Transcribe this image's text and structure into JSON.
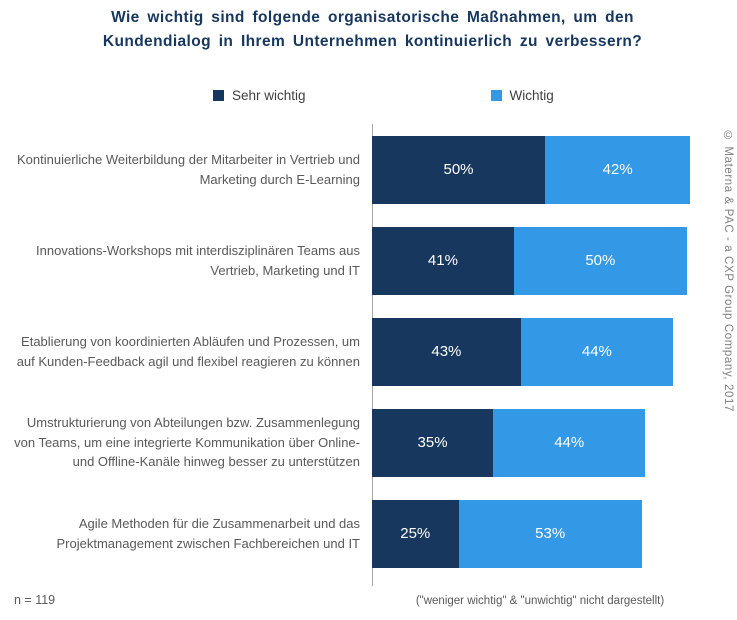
{
  "chart_data": {
    "type": "bar",
    "orientation": "horizontal",
    "stacked": true,
    "title": "Wie wichtig sind folgende organisatorische Maßnahmen, um den Kundendialog in Ihrem Unternehmen kontinuierlich zu verbessern?",
    "categories": [
      "Kontinuierliche Weiterbildung der Mitarbeiter in Vertrieb und Marketing durch E-Learning",
      "Innovations-Workshops mit interdisziplinären Teams aus Vertrieb, Marketing und IT",
      "Etablierung von koordinierten Abläufen und Prozessen, um auf Kunden-Feedback agil und flexibel reagieren zu können",
      "Umstrukturierung von Abteilungen bzw. Zusammenlegung von Teams, um eine integrierte Kommunikation über Online- und Offline-Kanäle hinweg besser zu unterstützen",
      "Agile Methoden für die Zusammenarbeit und das Projektmanagement zwischen Fachbereichen und IT"
    ],
    "series": [
      {
        "name": "Sehr wichtig",
        "color": "#17375E",
        "values": [
          50,
          41,
          43,
          35,
          25
        ]
      },
      {
        "name": "Wichtig",
        "color": "#3399E6",
        "values": [
          42,
          50,
          44,
          44,
          53
        ]
      }
    ],
    "value_suffix": "%",
    "xlim": [
      0,
      100
    ],
    "legend_position": "top",
    "grid": false
  },
  "footnotes": {
    "sample_size": "n = 119",
    "exclusion": "(\"weniger wichtig\" & \"unwichtig\" nicht dargestellt)"
  },
  "watermark": "© Materna & PAC - a CXP Group Company, 2017"
}
